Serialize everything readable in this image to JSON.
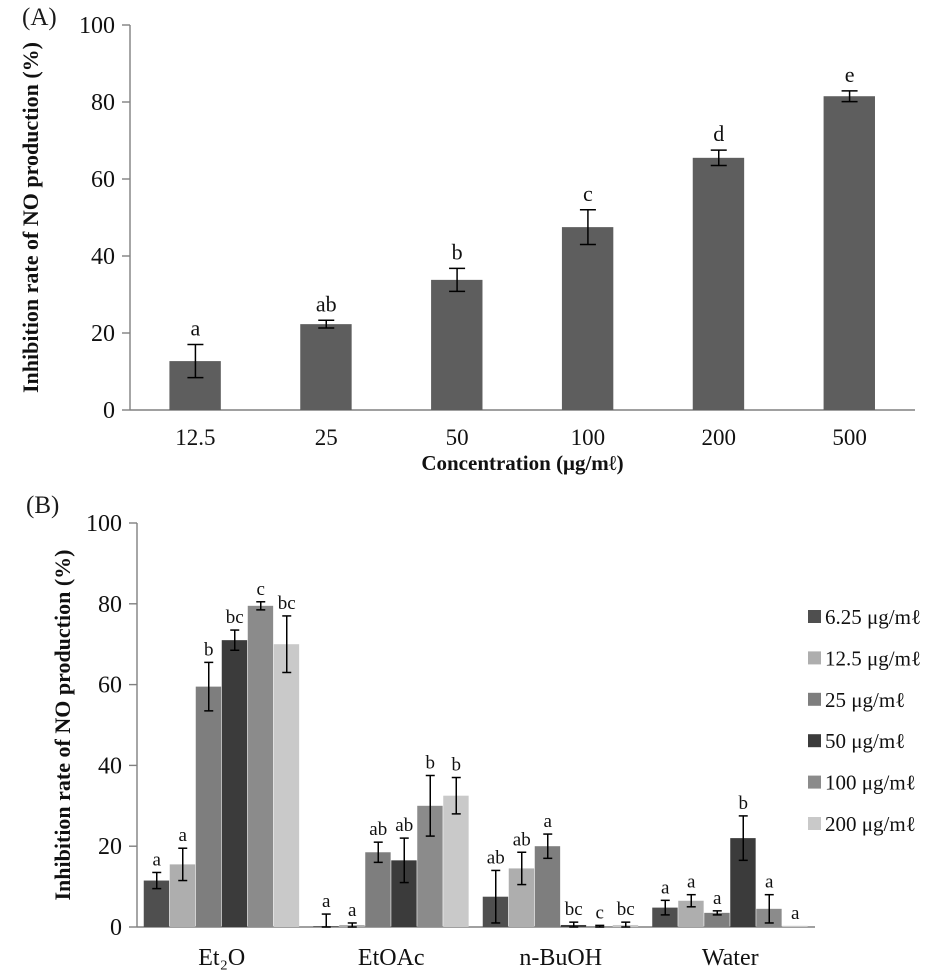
{
  "figure": {
    "panel_a_label": "(A)",
    "panel_b_label": "(B)"
  },
  "chart_data": [
    {
      "type": "bar",
      "panel": "A",
      "title": "",
      "xlabel": "Concentration (μg/mℓ)",
      "ylabel": "Inhibition rate of NO production (%)",
      "ylim": [
        0,
        100
      ],
      "yticks": [
        0,
        20,
        40,
        60,
        80,
        100
      ],
      "grid": false,
      "legend_position": "none",
      "categories": [
        "12.5",
        "25",
        "50",
        "100",
        "200",
        "500"
      ],
      "values": [
        12.7,
        22.3,
        33.8,
        47.5,
        65.5,
        81.5
      ],
      "errors": [
        4.3,
        1.0,
        3.0,
        4.5,
        2.0,
        1.4
      ],
      "sig_letters": [
        "a",
        "ab",
        "b",
        "c",
        "d",
        "e"
      ],
      "bar_color": "#5e5e5e"
    },
    {
      "type": "bar",
      "panel": "B",
      "title": "",
      "xlabel": "",
      "ylabel": "Inhibition rate of NO production (%)",
      "ylim": [
        0,
        100
      ],
      "yticks": [
        0,
        20,
        40,
        60,
        80,
        100
      ],
      "grid": false,
      "legend_position": "right",
      "categories": [
        "Et₂O",
        "EtOAc",
        "n-BuOH",
        "Water"
      ],
      "series": [
        {
          "name": "6.25 μg/mℓ",
          "color": "#4f4f4f",
          "values": [
            11.5,
            0.2,
            7.5,
            4.8
          ],
          "errors": [
            2.0,
            3.0,
            6.5,
            1.8
          ],
          "letters": [
            "a",
            "a",
            "ab",
            "a"
          ]
        },
        {
          "name": "12.5 μg/mℓ",
          "color": "#aeaeae",
          "values": [
            15.5,
            0.5,
            14.5,
            6.5
          ],
          "errors": [
            4.0,
            0.5,
            4.0,
            1.5
          ],
          "letters": [
            "a",
            "a",
            "ab",
            "a"
          ]
        },
        {
          "name": "25 μg/mℓ",
          "color": "#7e7e7e",
          "values": [
            59.5,
            18.5,
            20.0,
            3.5
          ],
          "errors": [
            6.0,
            2.5,
            3.0,
            0.5
          ],
          "letters": [
            "b",
            "ab",
            "a",
            "a"
          ]
        },
        {
          "name": "50 μg/mℓ",
          "color": "#3b3b3b",
          "values": [
            71.0,
            16.5,
            0.5,
            22.0
          ],
          "errors": [
            2.5,
            5.5,
            0.7,
            5.5
          ],
          "letters": [
            "bc",
            "ab",
            "bc",
            "b"
          ]
        },
        {
          "name": "100 μg/mℓ",
          "color": "#8b8b8b",
          "values": [
            79.5,
            30.0,
            0.1,
            4.5
          ],
          "errors": [
            1.0,
            7.5,
            0.3,
            3.5
          ],
          "letters": [
            "c",
            "b",
            "c",
            "a"
          ]
        },
        {
          "name": "200 μg/mℓ",
          "color": "#c9c9c9",
          "values": [
            70.0,
            32.5,
            0.5,
            0.3
          ],
          "errors": [
            7.0,
            4.5,
            0.7,
            0.0
          ],
          "letters": [
            "bc",
            "b",
            "bc",
            "a"
          ]
        }
      ]
    }
  ],
  "colors": {
    "axis": "#808080",
    "error_bar": "#000000",
    "text": "#111111"
  }
}
